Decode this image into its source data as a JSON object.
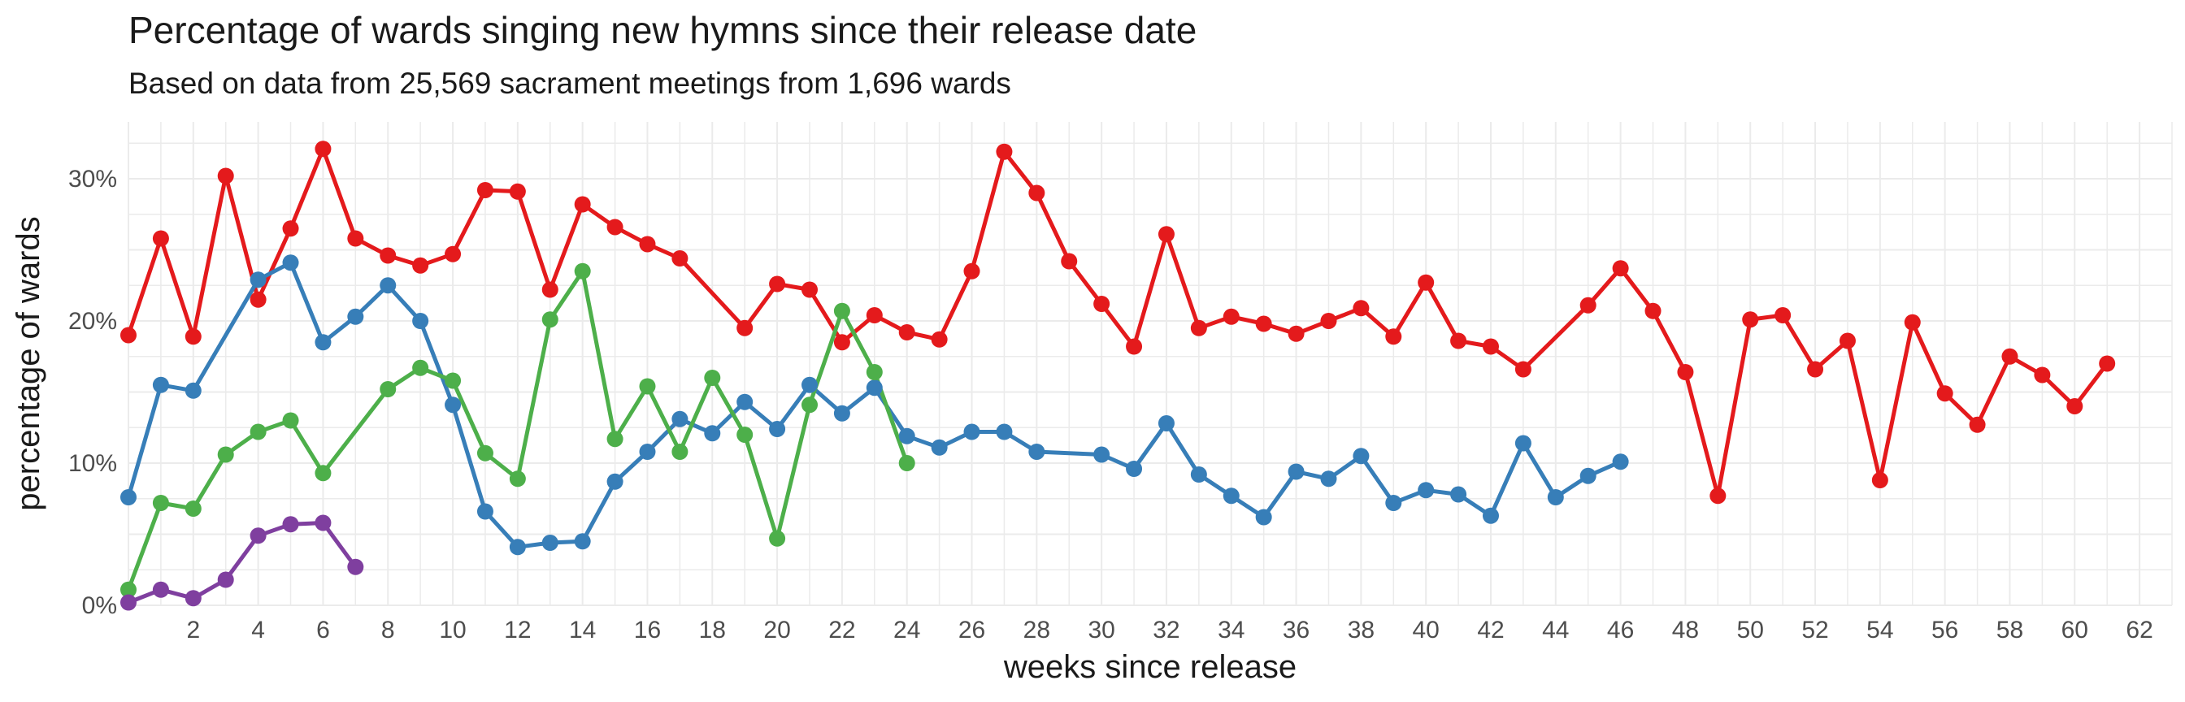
{
  "title": "Percentage of wards singing new hymns since their release date",
  "subtitle": "Based on data from 25,569 sacrament meetings from 1,696 wards",
  "chart_data": {
    "type": "line",
    "title": "Percentage of wards singing new hymns since their release date",
    "subtitle": "Based on data from 25,569 sacrament meetings from 1,696 wards",
    "xlabel": "weeks since release",
    "ylabel": "percentage of wards",
    "xlim": [
      0,
      63
    ],
    "ylim": [
      0,
      34
    ],
    "x_ticks": [
      2,
      4,
      6,
      8,
      10,
      12,
      14,
      16,
      18,
      20,
      22,
      24,
      26,
      28,
      30,
      32,
      34,
      36,
      38,
      40,
      42,
      44,
      46,
      48,
      50,
      52,
      54,
      56,
      58,
      60,
      62
    ],
    "y_ticks": [
      0,
      10,
      20,
      30
    ],
    "y_tick_labels": [
      "0%",
      "10%",
      "20%",
      "30%"
    ],
    "grid": true,
    "legend": "none",
    "series": [
      {
        "color": "#E41A1C",
        "points": [
          [
            0,
            19
          ],
          [
            1,
            25.8
          ],
          [
            2,
            18.9
          ],
          [
            3,
            30.2
          ],
          [
            4,
            21.5
          ],
          [
            5,
            26.5
          ],
          [
            6,
            32.1
          ],
          [
            7,
            25.8
          ],
          [
            8,
            24.6
          ],
          [
            9,
            23.9
          ],
          [
            10,
            24.7
          ],
          [
            11,
            29.2
          ],
          [
            12,
            29.1
          ],
          [
            13,
            22.2
          ],
          [
            14,
            28.2
          ],
          [
            15,
            26.6
          ],
          [
            16,
            25.4
          ],
          [
            17,
            24.4
          ],
          [
            19,
            19.5
          ],
          [
            20,
            22.6
          ],
          [
            21,
            22.2
          ],
          [
            22,
            18.5
          ],
          [
            23,
            20.4
          ],
          [
            24,
            19.2
          ],
          [
            25,
            18.7
          ],
          [
            26,
            23.5
          ],
          [
            27,
            31.9
          ],
          [
            28,
            29
          ],
          [
            29,
            24.2
          ],
          [
            30,
            21.2
          ],
          [
            31,
            18.2
          ],
          [
            32,
            26.1
          ],
          [
            33,
            19.5
          ],
          [
            34,
            20.3
          ],
          [
            35,
            19.8
          ],
          [
            36,
            19.1
          ],
          [
            37,
            20
          ],
          [
            38,
            20.9
          ],
          [
            39,
            18.9
          ],
          [
            40,
            22.7
          ],
          [
            41,
            18.6
          ],
          [
            42,
            18.2
          ],
          [
            43,
            16.6
          ],
          [
            45,
            21.1
          ],
          [
            46,
            23.7
          ],
          [
            47,
            20.7
          ],
          [
            48,
            16.4
          ],
          [
            49,
            7.7
          ],
          [
            50,
            20.1
          ],
          [
            51,
            20.4
          ],
          [
            52,
            16.6
          ],
          [
            53,
            18.6
          ],
          [
            54,
            8.8
          ],
          [
            55,
            19.9
          ],
          [
            56,
            14.9
          ],
          [
            57,
            12.7
          ],
          [
            58,
            17.5
          ],
          [
            59,
            16.2
          ],
          [
            60,
            14
          ],
          [
            61,
            17
          ]
        ]
      },
      {
        "color": "#377EB8",
        "points": [
          [
            0,
            7.6
          ],
          [
            1,
            15.5
          ],
          [
            2,
            15.1
          ],
          [
            4,
            22.9
          ],
          [
            5,
            24.1
          ],
          [
            6,
            18.5
          ],
          [
            7,
            20.3
          ],
          [
            8,
            22.5
          ],
          [
            9,
            20
          ],
          [
            10,
            14.1
          ],
          [
            11,
            6.6
          ],
          [
            12,
            4.1
          ],
          [
            13,
            4.4
          ],
          [
            14,
            4.5
          ],
          [
            15,
            8.7
          ],
          [
            16,
            10.8
          ],
          [
            17,
            13.1
          ],
          [
            18,
            12.1
          ],
          [
            19,
            14.3
          ],
          [
            20,
            12.4
          ],
          [
            21,
            15.5
          ],
          [
            22,
            13.5
          ],
          [
            23,
            15.3
          ],
          [
            24,
            11.9
          ],
          [
            25,
            11.1
          ],
          [
            26,
            12.2
          ],
          [
            27,
            12.2
          ],
          [
            28,
            10.8
          ],
          [
            30,
            10.6
          ],
          [
            31,
            9.6
          ],
          [
            32,
            12.8
          ],
          [
            33,
            9.2
          ],
          [
            34,
            7.7
          ],
          [
            35,
            6.2
          ],
          [
            36,
            9.4
          ],
          [
            37,
            8.9
          ],
          [
            38,
            10.5
          ],
          [
            39,
            7.2
          ],
          [
            40,
            8.1
          ],
          [
            41,
            7.8
          ],
          [
            42,
            6.3
          ],
          [
            43,
            11.4
          ],
          [
            44,
            7.6
          ],
          [
            45,
            9.1
          ],
          [
            46,
            10.1
          ]
        ]
      },
      {
        "color": "#4DAF4A",
        "points": [
          [
            0,
            1.1
          ],
          [
            1,
            7.2
          ],
          [
            2,
            6.8
          ],
          [
            3,
            10.6
          ],
          [
            4,
            12.2
          ],
          [
            5,
            13
          ],
          [
            6,
            9.3
          ],
          [
            8,
            15.2
          ],
          [
            9,
            16.7
          ],
          [
            10,
            15.8
          ],
          [
            11,
            10.7
          ],
          [
            12,
            8.9
          ],
          [
            13,
            20.1
          ],
          [
            14,
            23.5
          ],
          [
            15,
            11.7
          ],
          [
            16,
            15.4
          ],
          [
            17,
            10.8
          ],
          [
            18,
            16
          ],
          [
            19,
            12
          ],
          [
            20,
            4.7
          ],
          [
            21,
            14.1
          ],
          [
            22,
            20.7
          ],
          [
            23,
            16.4
          ],
          [
            24,
            10
          ]
        ]
      },
      {
        "color": "#7F3F9F",
        "points": [
          [
            0,
            0.2
          ],
          [
            1,
            1.1
          ],
          [
            2,
            0.5
          ],
          [
            3,
            1.8
          ],
          [
            4,
            4.9
          ],
          [
            5,
            5.7
          ],
          [
            6,
            5.8
          ],
          [
            7,
            2.7
          ]
        ]
      }
    ]
  }
}
